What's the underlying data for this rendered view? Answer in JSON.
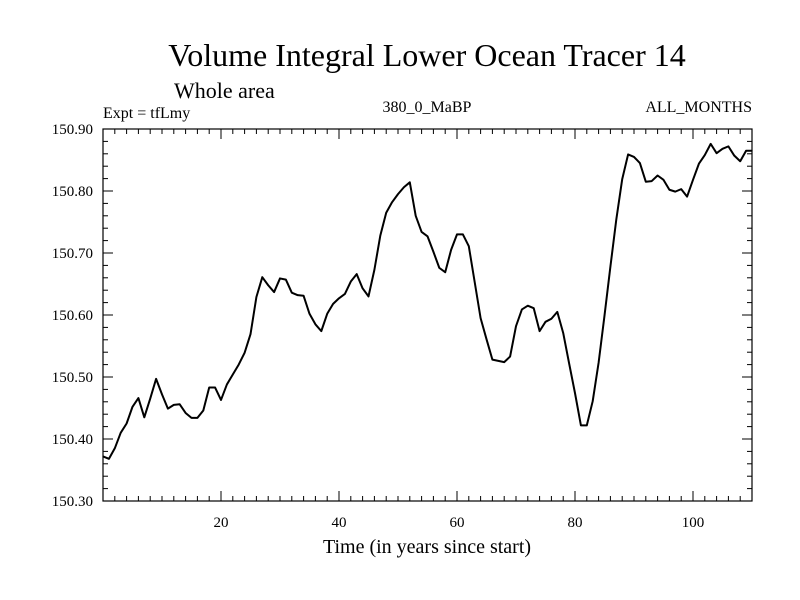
{
  "chart_data": {
    "type": "line",
    "title": "Volume Integral Lower Ocean Tracer 14",
    "subtitle": "Whole area",
    "experiment": "Expt = tfLmy",
    "period": "380_0_MaBP",
    "months": "ALL_MONTHS",
    "xlabel": "Time (in years since start)",
    "ylabel": "",
    "xlim": [
      0,
      110
    ],
    "ylim": [
      150.3,
      150.9
    ],
    "xticks": [
      20,
      40,
      60,
      80,
      100
    ],
    "xtick_labels": [
      "20",
      "40",
      "60",
      "80",
      "100"
    ],
    "yticks": [
      150.3,
      150.4,
      150.5,
      150.6,
      150.7,
      150.8,
      150.9
    ],
    "ytick_labels": [
      "150.30",
      "150.40",
      "150.50",
      "150.60",
      "150.70",
      "150.80",
      "150.90"
    ],
    "grid": false,
    "color": "#000000",
    "series": [
      {
        "name": "tracer14",
        "x": [
          0,
          1,
          2,
          3,
          4,
          5,
          6,
          7,
          8,
          9,
          10,
          11,
          12,
          13,
          14,
          15,
          16,
          17,
          18,
          19,
          20,
          21,
          22,
          23,
          24,
          25,
          26,
          27,
          28,
          29,
          30,
          31,
          32,
          33,
          34,
          35,
          36,
          37,
          38,
          39,
          40,
          41,
          42,
          43,
          44,
          45,
          46,
          47,
          48,
          49,
          50,
          51,
          52,
          53,
          54,
          55,
          56,
          57,
          58,
          59,
          60,
          61,
          62,
          63,
          64,
          65,
          66,
          67,
          68,
          69,
          70,
          71,
          72,
          73,
          74,
          75,
          76,
          77,
          78,
          79,
          80,
          81,
          82,
          83,
          84,
          85,
          86,
          87,
          88,
          89,
          90,
          91,
          92,
          93,
          94,
          95,
          96,
          97,
          98,
          99,
          100,
          101,
          102,
          103,
          104,
          105,
          106,
          107,
          108,
          109,
          110
        ],
        "values": [
          150.372,
          150.368,
          150.385,
          150.41,
          150.425,
          150.452,
          150.466,
          150.435,
          150.465,
          150.497,
          150.472,
          150.449,
          150.455,
          150.456,
          150.442,
          150.434,
          150.434,
          150.446,
          150.483,
          150.483,
          150.463,
          150.488,
          150.504,
          150.52,
          150.539,
          150.569,
          150.629,
          150.661,
          150.648,
          150.637,
          150.659,
          150.657,
          150.636,
          150.632,
          150.631,
          150.602,
          150.585,
          150.574,
          150.602,
          150.618,
          150.627,
          150.634,
          150.654,
          150.666,
          150.643,
          150.63,
          150.673,
          150.728,
          150.765,
          150.782,
          150.795,
          150.806,
          150.814,
          150.76,
          150.734,
          150.727,
          150.702,
          150.676,
          150.669,
          150.705,
          150.73,
          150.73,
          150.711,
          150.653,
          150.595,
          150.561,
          150.528,
          150.526,
          150.524,
          150.533,
          150.582,
          150.609,
          150.615,
          150.611,
          150.574,
          150.589,
          150.594,
          150.605,
          150.571,
          150.522,
          150.474,
          150.422,
          150.422,
          150.461,
          150.523,
          150.599,
          150.678,
          150.754,
          150.819,
          150.859,
          150.855,
          150.845,
          150.815,
          150.816,
          150.825,
          150.818,
          150.802,
          150.799,
          150.803,
          150.791,
          150.818,
          150.844,
          150.858,
          150.876,
          150.861,
          150.868,
          150.872,
          150.857,
          150.848,
          150.865,
          150.865
        ]
      }
    ]
  }
}
